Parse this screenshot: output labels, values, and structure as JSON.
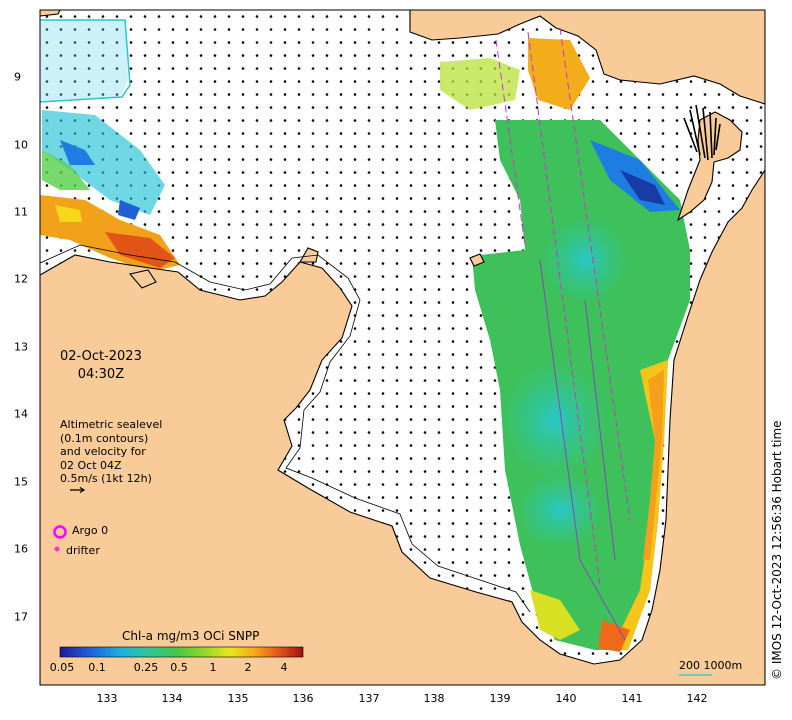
{
  "map": {
    "date": "02-Oct-2023",
    "time": "04:30Z",
    "legend_lines": [
      "Altimetric sealevel",
      "(0.1m contours)",
      "and velocity for",
      "02 Oct 04Z",
      "0.5m/s (1kt 12h)"
    ],
    "argo_label": "Argo 0",
    "drifter_label": "drifter",
    "colorbar": {
      "title": "Chl-a mg/m3 OCi SNPP",
      "ticks": [
        "0.05",
        "0.1",
        "0.25",
        "0.5",
        "1",
        "2",
        "4"
      ]
    },
    "scale_label": "200  1000m",
    "credit": "© IMOS 12-Oct-2023 12:56:36 Hobart time",
    "x_ticks": [
      "133",
      "134",
      "135",
      "136",
      "137",
      "138",
      "139",
      "140",
      "141",
      "142"
    ],
    "y_ticks": [
      "9",
      "10",
      "11",
      "12",
      "13",
      "14",
      "15",
      "16",
      "17"
    ],
    "colors": {
      "land": "#f9cb98",
      "ocean": "#ffffff",
      "argo": "#ff00ff",
      "drifter": "#ff33cc",
      "scale_bar": "#44ccaa"
    }
  }
}
